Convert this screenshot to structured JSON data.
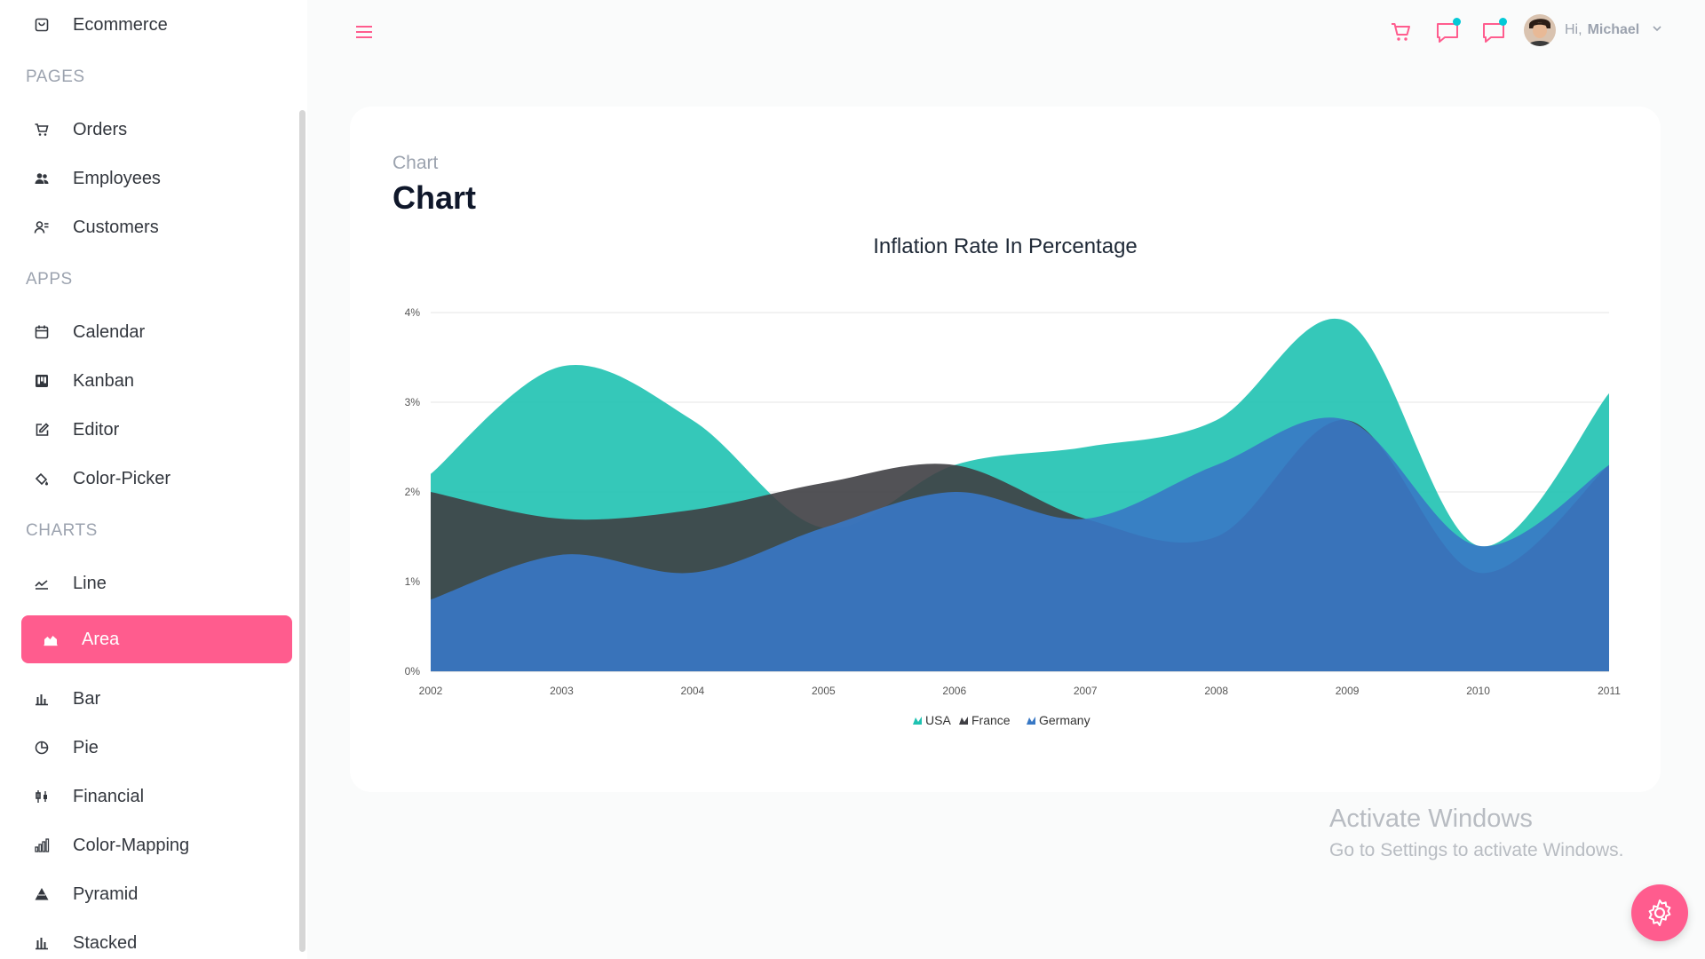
{
  "sidebar": {
    "top_item": {
      "label": "Ecommerce",
      "icon": "bag-icon"
    },
    "sections": [
      {
        "title": "PAGES",
        "items": [
          {
            "label": "Orders",
            "icon": "cart-icon"
          },
          {
            "label": "Employees",
            "icon": "users-icon"
          },
          {
            "label": "Customers",
            "icon": "user-list-icon"
          }
        ]
      },
      {
        "title": "APPS",
        "items": [
          {
            "label": "Calendar",
            "icon": "calendar-icon"
          },
          {
            "label": "Kanban",
            "icon": "kanban-icon"
          },
          {
            "label": "Editor",
            "icon": "edit-icon"
          },
          {
            "label": "Color-Picker",
            "icon": "paint-bucket-icon"
          }
        ]
      },
      {
        "title": "CHARTS",
        "items": [
          {
            "label": "Line",
            "icon": "line-chart-icon"
          },
          {
            "label": "Area",
            "icon": "area-chart-icon",
            "active": true
          },
          {
            "label": "Bar",
            "icon": "bar-chart-icon"
          },
          {
            "label": "Pie",
            "icon": "pie-chart-icon"
          },
          {
            "label": "Financial",
            "icon": "financial-icon"
          },
          {
            "label": "Color-Mapping",
            "icon": "color-mapping-icon"
          },
          {
            "label": "Pyramid",
            "icon": "pyramid-icon"
          },
          {
            "label": "Stacked",
            "icon": "stacked-chart-icon"
          }
        ]
      }
    ]
  },
  "header": {
    "greeting": "Hi,",
    "user_name": "Michael",
    "notification_color": "#03c9d7",
    "accent_color": "#ff5c8e"
  },
  "page": {
    "breadcrumb": "Chart",
    "title": "Chart"
  },
  "chart_data": {
    "type": "area",
    "title": "Inflation Rate In Percentage",
    "x": [
      2002,
      2003,
      2004,
      2005,
      2006,
      2007,
      2008,
      2009,
      2010,
      2011
    ],
    "ylim": [
      0,
      4
    ],
    "yticks": [
      "0%",
      "1%",
      "2%",
      "3%",
      "4%"
    ],
    "grid": true,
    "legend_position": "bottom",
    "series": [
      {
        "name": "USA",
        "color": "#1fc2b1",
        "values": [
          2.2,
          3.4,
          2.8,
          1.6,
          2.3,
          2.5,
          2.8,
          3.9,
          1.4,
          3.1
        ]
      },
      {
        "name": "France",
        "color": "#3f3f44",
        "values": [
          2.0,
          1.7,
          1.8,
          2.1,
          2.3,
          1.7,
          1.5,
          2.8,
          1.1,
          2.3
        ]
      },
      {
        "name": "Germany",
        "color": "#3878c5",
        "values": [
          0.8,
          1.3,
          1.1,
          1.6,
          2.0,
          1.7,
          2.3,
          2.8,
          1.4,
          2.3
        ]
      }
    ]
  },
  "watermark": {
    "line1": "Activate Windows",
    "line2": "Go to Settings to activate Windows."
  }
}
